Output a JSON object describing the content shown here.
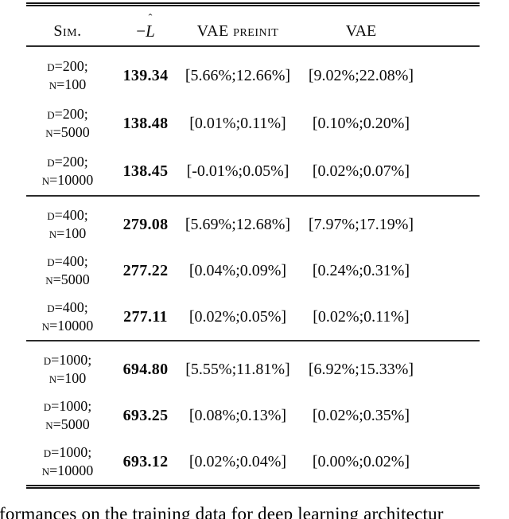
{
  "page": {
    "background": "#ffffff",
    "text_color": "#0a0a0a",
    "rule_color": "#161616"
  },
  "table": {
    "headers": {
      "sim": "Sim.",
      "loss_minus": "−",
      "loss_letter": "L",
      "loss_hat": "ˆ",
      "vae_preinit": "VAE preinit",
      "vae": "VAE"
    },
    "sections": [
      {
        "rows": [
          {
            "sim_line1": "D=200;",
            "sim_line2": "N=100",
            "loss": "139.34",
            "vae_preinit": "[5.66%;12.66%]",
            "vae": "[9.02%;22.08%]"
          },
          {
            "sim_line1": "D=200;",
            "sim_line2": "N=5000",
            "loss": "138.48",
            "vae_preinit": "[0.01%;0.11%]",
            "vae": "[0.10%;0.20%]"
          },
          {
            "sim_line1": "D=200;",
            "sim_line2": "N=10000",
            "loss": "138.45",
            "vae_preinit": "[-0.01%;0.05%]",
            "vae": "[0.02%;0.07%]"
          }
        ]
      },
      {
        "rows": [
          {
            "sim_line1": "D=400;",
            "sim_line2": "N=100",
            "loss": "279.08",
            "vae_preinit": "[5.69%;12.68%]",
            "vae": "[7.97%;17.19%]"
          },
          {
            "sim_line1": "D=400;",
            "sim_line2": "N=5000",
            "loss": "277.22",
            "vae_preinit": "[0.04%;0.09%]",
            "vae": "[0.24%;0.31%]"
          },
          {
            "sim_line1": "D=400;",
            "sim_line2": "N=10000",
            "loss": "277.11",
            "vae_preinit": "[0.02%;0.05%]",
            "vae": "[0.02%;0.11%]"
          }
        ]
      },
      {
        "rows": [
          {
            "sim_line1": "D=1000;",
            "sim_line2": "N=100",
            "loss": "694.80",
            "vae_preinit": "[5.55%;11.81%]",
            "vae": "[6.92%;15.33%]"
          },
          {
            "sim_line1": "D=1000;",
            "sim_line2": "N=5000",
            "loss": "693.25",
            "vae_preinit": "[0.08%;0.13%]",
            "vae": "[0.02%;0.35%]"
          },
          {
            "sim_line1": "D=1000;",
            "sim_line2": "N=10000",
            "loss": "693.12",
            "vae_preinit": "[0.02%;0.04%]",
            "vae": "[0.00%;0.02%]"
          }
        ]
      }
    ]
  },
  "caption": {
    "visible_text": "formances on the training data for deep learning architectur"
  }
}
